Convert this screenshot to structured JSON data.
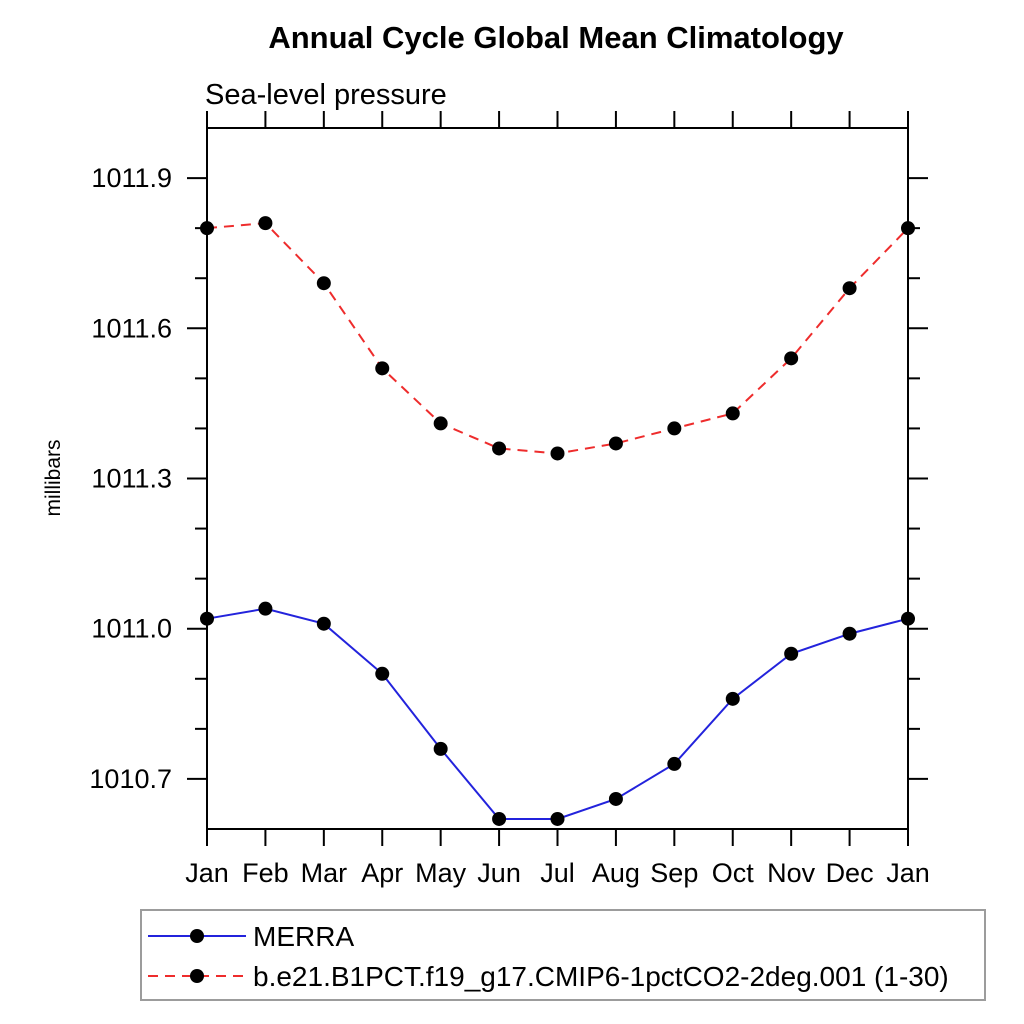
{
  "chart_data": {
    "type": "line",
    "title": "Annual Cycle Global Mean Climatology",
    "subtitle": "Sea-level pressure",
    "xlabel": "",
    "ylabel": "millibars",
    "categories": [
      "Jan",
      "Feb",
      "Mar",
      "Apr",
      "May",
      "Jun",
      "Jul",
      "Aug",
      "Sep",
      "Oct",
      "Nov",
      "Dec",
      "Jan"
    ],
    "series": [
      {
        "name": "MERRA",
        "color": "#2323dc",
        "line_style": "solid",
        "marker": "filled-circle",
        "marker_color": "#000000",
        "values": [
          1011.02,
          1011.04,
          1011.01,
          1010.91,
          1010.76,
          1010.62,
          1010.62,
          1010.66,
          1010.73,
          1010.86,
          1010.95,
          1010.99,
          1011.02
        ]
      },
      {
        "name": "b.e21.B1PCT.f19_g17.CMIP6-1pctCO2-2deg.001 (1-30)",
        "color": "#ee2c2c",
        "line_style": "dashed",
        "marker": "filled-circle",
        "marker_color": "#000000",
        "values": [
          1011.8,
          1011.81,
          1011.69,
          1011.52,
          1011.41,
          1011.36,
          1011.35,
          1011.37,
          1011.4,
          1011.43,
          1011.54,
          1011.68,
          1011.8
        ]
      }
    ],
    "ylim": [
      1010.6,
      1012.0
    ],
    "ytick_major": [
      1010.7,
      1011.0,
      1011.3,
      1011.6,
      1011.9
    ],
    "ytick_labels": [
      "1010.7",
      "1011.0",
      "1011.3",
      "1011.6",
      "1011.9"
    ],
    "ytick_minor_step": 0.1,
    "grid": false,
    "legend_position": "bottom-left",
    "axis_color": "#000000",
    "text_color": "#000000",
    "legend_border_color": "#9c9c9c"
  }
}
